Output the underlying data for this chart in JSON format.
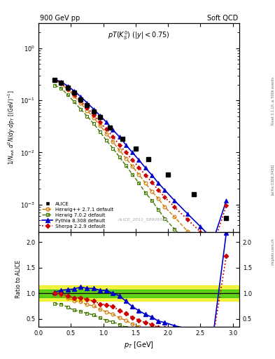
{
  "title_left": "900 GeV pp",
  "title_right": "Soft QCD",
  "plot_title": "pT(K) (|y| < 0.75)",
  "watermark": "ALICE_2011_S8909580",
  "rivet_label": "Rivet 3.1.10, ≥ 500k events",
  "arxiv_label": "[arXiv:1306.3436]",
  "mcplots_label": "mcplots.cern.ch",
  "xlabel": "p_{T} [GeV]",
  "ylabel": "1/N_{evt} d^{2}N/dydp_{T} [(GeV)^{-1}]",
  "ratio_ylabel": "Ratio to ALICE",
  "xlim": [
    0.0,
    3.1
  ],
  "ylim_log": [
    0.0003,
    3.0
  ],
  "ylim_ratio": [
    0.35,
    2.2
  ],
  "alice_pt": [
    0.25,
    0.35,
    0.45,
    0.55,
    0.65,
    0.75,
    0.85,
    0.95,
    1.1,
    1.3,
    1.5,
    1.7,
    2.0,
    2.4,
    2.9
  ],
  "alice_y": [
    0.245,
    0.215,
    0.175,
    0.14,
    0.105,
    0.082,
    0.062,
    0.048,
    0.03,
    0.018,
    0.012,
    0.0075,
    0.0038,
    0.0016,
    0.00055
  ],
  "herwig1_pt": [
    0.25,
    0.35,
    0.45,
    0.55,
    0.65,
    0.75,
    0.85,
    0.95,
    1.05,
    1.15,
    1.25,
    1.35,
    1.45,
    1.55,
    1.65,
    1.75,
    1.85,
    1.95,
    2.1,
    2.3,
    2.5,
    2.7,
    2.9
  ],
  "herwig1_y": [
    0.24,
    0.208,
    0.16,
    0.12,
    0.088,
    0.064,
    0.047,
    0.033,
    0.023,
    0.016,
    0.011,
    0.0078,
    0.0054,
    0.0038,
    0.0026,
    0.0018,
    0.0013,
    0.0009,
    0.00058,
    0.00031,
    0.00017,
    9e-05,
    4.8e-05
  ],
  "herwig2_pt": [
    0.25,
    0.35,
    0.45,
    0.55,
    0.65,
    0.75,
    0.85,
    0.95,
    1.05,
    1.15,
    1.25,
    1.35,
    1.45,
    1.55,
    1.65,
    1.75,
    1.85,
    1.95,
    2.1,
    2.3,
    2.5,
    2.7,
    2.9
  ],
  "herwig2_y": [
    0.195,
    0.17,
    0.128,
    0.094,
    0.068,
    0.05,
    0.036,
    0.025,
    0.017,
    0.012,
    0.0082,
    0.0056,
    0.0038,
    0.0026,
    0.0017,
    0.0012,
    0.0008,
    0.00054,
    0.00034,
    0.00018,
    9.4e-05,
    4.8e-05,
    2.5e-05
  ],
  "pythia_pt": [
    0.25,
    0.35,
    0.45,
    0.55,
    0.65,
    0.75,
    0.85,
    0.95,
    1.05,
    1.15,
    1.25,
    1.35,
    1.45,
    1.55,
    1.65,
    1.75,
    1.85,
    1.95,
    2.1,
    2.3,
    2.5,
    2.7,
    2.9
  ],
  "pythia_y": [
    0.25,
    0.228,
    0.188,
    0.152,
    0.118,
    0.09,
    0.068,
    0.051,
    0.038,
    0.027,
    0.02,
    0.014,
    0.01,
    0.0072,
    0.0051,
    0.0037,
    0.0026,
    0.0019,
    0.0012,
    0.00067,
    0.00038,
    0.00021,
    0.0012
  ],
  "sherpa_pt": [
    0.25,
    0.35,
    0.45,
    0.55,
    0.65,
    0.75,
    0.85,
    0.95,
    1.05,
    1.15,
    1.25,
    1.35,
    1.45,
    1.55,
    1.65,
    1.75,
    1.85,
    1.95,
    2.1,
    2.3,
    2.5,
    2.7,
    2.9
  ],
  "sherpa_y": [
    0.248,
    0.214,
    0.166,
    0.128,
    0.096,
    0.072,
    0.053,
    0.038,
    0.028,
    0.02,
    0.014,
    0.01,
    0.0072,
    0.0052,
    0.0037,
    0.0027,
    0.0019,
    0.0014,
    0.0009,
    0.00052,
    0.0003,
    0.00017,
    0.00095
  ],
  "band_yellow_y1": 0.85,
  "band_yellow_y2": 1.15,
  "band_green_y1": 0.93,
  "band_green_y2": 1.07,
  "color_alice": "#000000",
  "color_herwig1": "#cc7700",
  "color_herwig2": "#447700",
  "color_pythia": "#0000cc",
  "color_sherpa": "#cc0000",
  "color_band_yellow": "#eeee00",
  "color_band_green": "#00bb00"
}
